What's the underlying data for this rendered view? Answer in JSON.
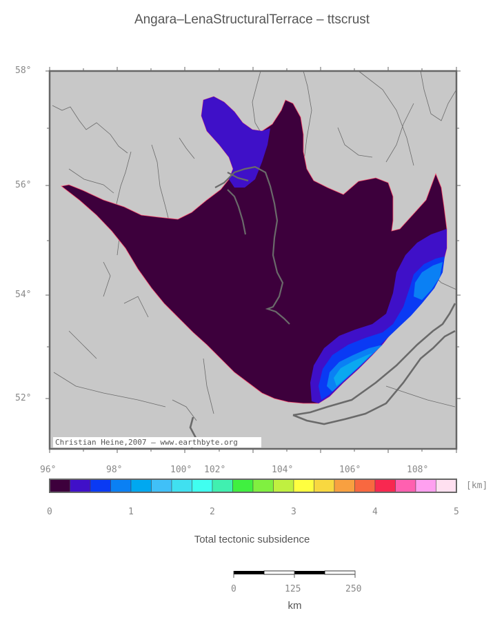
{
  "title": "Angara–LenaStructuralTerrace – ttscrust",
  "map": {
    "lat_ticks": [
      "58°",
      "56°",
      "54°",
      "52°"
    ],
    "lon_ticks": [
      "96°",
      "98°",
      "100°",
      "102°",
      "104°",
      "106°",
      "108°"
    ],
    "credit": "Christian Heine,2007 – www.earthbyte.org",
    "colors": {
      "land": "#c8c8c8",
      "frame": "#666666",
      "outline": "#ff4d6d",
      "basin_deep": "#3d003c",
      "basin_mid": "#3f10c8",
      "basin_blue": "#0a3af4",
      "basin_light": "#0a80f4",
      "basin_cyan": "#0aa8f0"
    }
  },
  "colorbar": {
    "unit": "[km]",
    "tick_labels": [
      "0",
      "1",
      "2",
      "3",
      "4",
      "5"
    ],
    "colors": [
      "#3d003c",
      "#4010c8",
      "#0a3af4",
      "#0a80f4",
      "#00a8f0",
      "#40c0f8",
      "#40e0f0",
      "#40fff0",
      "#40f0b0",
      "#40f040",
      "#80f040",
      "#c0f040",
      "#ffff40",
      "#f8d840",
      "#f8a040",
      "#f86840",
      "#f82850",
      "#ff60b0",
      "#ffa0f0",
      "#ffe0f0"
    ],
    "caption": "Total tectonic subsidence"
  },
  "scalebar": {
    "labels": [
      "0",
      "125",
      "250"
    ],
    "unit": "km"
  }
}
